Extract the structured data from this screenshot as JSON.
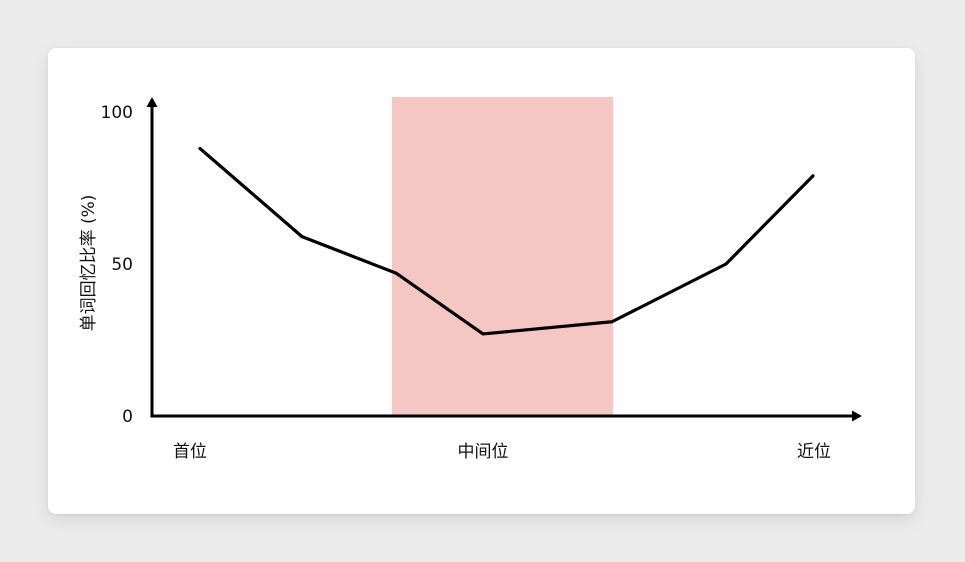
{
  "chart_data": {
    "type": "line",
    "ylabel": "单词回忆比率 (%)",
    "xlabel": "",
    "ylim": [
      0,
      100
    ],
    "yticks": [
      0,
      50,
      100
    ],
    "x_tick_labels": [
      "首位",
      "中间位",
      "近位"
    ],
    "series": [
      {
        "x": [
          1,
          2,
          3,
          4,
          5,
          6,
          7
        ],
        "values": [
          88,
          59,
          47,
          27,
          31,
          50,
          79
        ]
      }
    ],
    "highlight_region": {
      "x_start": 3,
      "x_end": 5,
      "color": "#f4c6c4"
    },
    "colors": {
      "line": "#000000",
      "axis": "#000000",
      "highlight": "#f4c6c4"
    }
  }
}
